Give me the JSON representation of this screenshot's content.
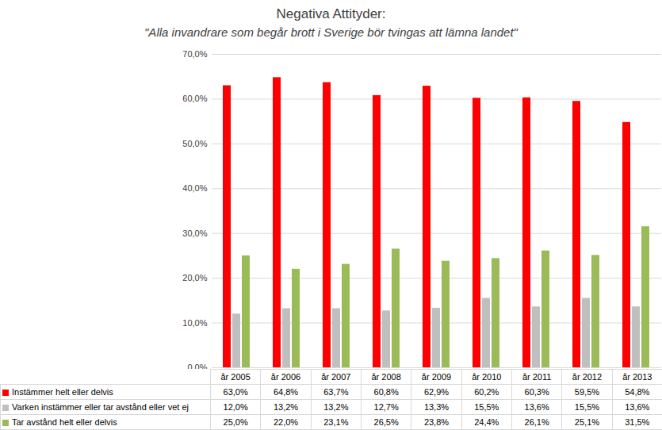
{
  "chart_data": {
    "type": "bar",
    "title": "Negativa Attityder:",
    "subtitle": "\"Alla invandrare som begår brott i Sverige bör tvingas att lämna landet\"",
    "categories": [
      "år 2005",
      "år 2006",
      "år 2007",
      "år 2008",
      "år 2009",
      "år 2010",
      "år 2011",
      "år 2012",
      "år 2013"
    ],
    "series": [
      {
        "name": "Instämmer helt eller delvis",
        "color": "#ff0000",
        "values": [
          63.0,
          64.8,
          63.7,
          60.8,
          62.9,
          60.2,
          60.3,
          59.5,
          54.8
        ],
        "value_labels": [
          "63,0%",
          "64,8%",
          "63,7%",
          "60,8%",
          "62,9%",
          "60,2%",
          "60,3%",
          "59,5%",
          "54,8%"
        ]
      },
      {
        "name": "Varken instämmer eller tar avstånd eller vet ej",
        "color": "#bfbfbf",
        "values": [
          12.0,
          13.2,
          13.2,
          12.7,
          13.3,
          15.5,
          13.6,
          15.5,
          13.6
        ],
        "value_labels": [
          "12,0%",
          "13,2%",
          "13,2%",
          "12,7%",
          "13,3%",
          "15,5%",
          "13,6%",
          "15,5%",
          "13,6%"
        ]
      },
      {
        "name": "Tar avstånd helt eller delvis",
        "color": "#9bbb59",
        "values": [
          25.0,
          22.0,
          23.1,
          26.5,
          23.8,
          24.4,
          26.1,
          25.1,
          31.5
        ],
        "value_labels": [
          "25,0%",
          "22,0%",
          "23,1%",
          "26,5%",
          "23,8%",
          "24,4%",
          "26,1%",
          "25,1%",
          "31,5%"
        ]
      }
    ],
    "ylim": [
      0,
      70
    ],
    "yticks": [
      {
        "value": 0,
        "label": "0,0%"
      },
      {
        "value": 10,
        "label": "10,0%"
      },
      {
        "value": 20,
        "label": "20,0%"
      },
      {
        "value": 30,
        "label": "30,0%"
      },
      {
        "value": 40,
        "label": "40,0%"
      },
      {
        "value": 50,
        "label": "50,0%"
      },
      {
        "value": 60,
        "label": "60,0%"
      },
      {
        "value": 70,
        "label": "70,0%"
      }
    ],
    "grid": true
  }
}
